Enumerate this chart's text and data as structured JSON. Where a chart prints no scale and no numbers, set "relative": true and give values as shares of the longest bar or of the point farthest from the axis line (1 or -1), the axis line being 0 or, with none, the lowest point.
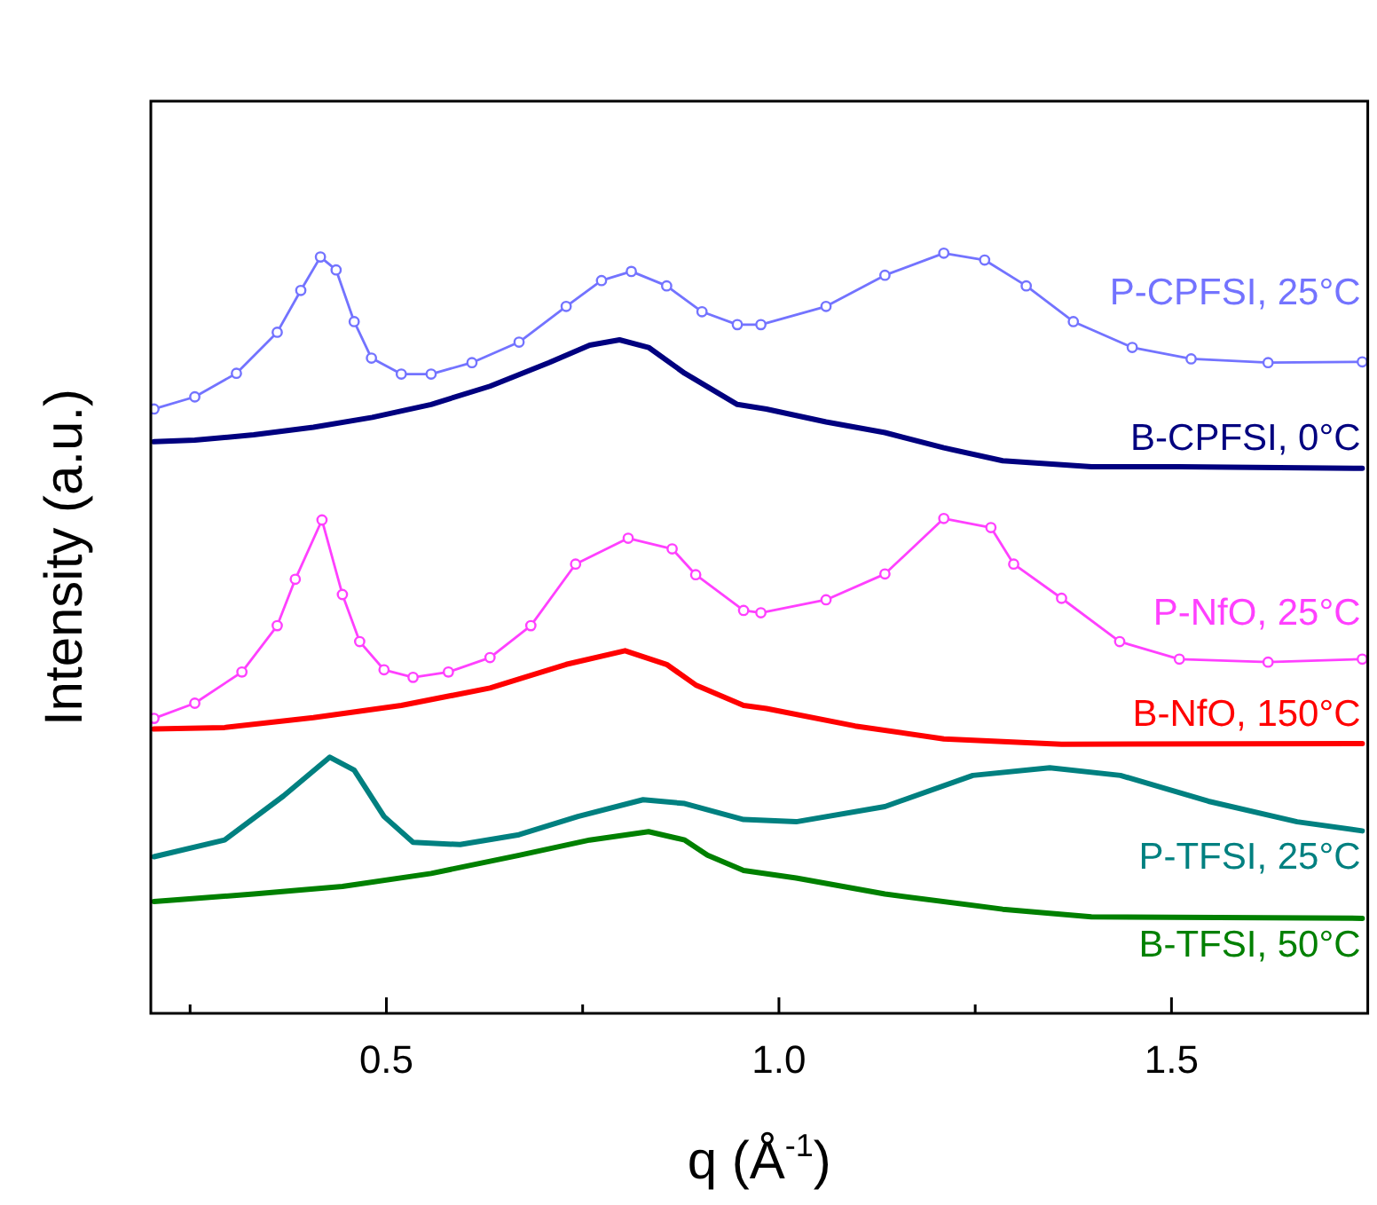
{
  "chart_data": {
    "type": "line",
    "xlabel": "q (Å$^{-1}$)",
    "ylabel": "Intensity (a.u.)",
    "relative": true,
    "tick_labels": "x",
    "xlim": [
      0.2,
      1.75
    ],
    "xticks": [
      {
        "value": 0.25,
        "label": null
      },
      0.5,
      {
        "value": 0.75,
        "label": null
      },
      {
        "value": 1,
        "label": "1.0"
      },
      {
        "value": 1.25,
        "label": null
      },
      1.5
    ],
    "series": [
      {
        "name": "P-CPFSI, 25°C",
        "color": "#7373ff",
        "marker": "circle",
        "x": [
          0.204,
          0.256,
          0.309,
          0.361,
          0.391,
          0.416,
          0.436,
          0.459,
          0.481,
          0.519,
          0.557,
          0.609,
          0.669,
          0.729,
          0.774,
          0.812,
          0.857,
          0.902,
          0.947,
          0.977,
          1.06,
          1.135,
          1.21,
          1.262,
          1.315,
          1.375,
          1.45,
          1.525,
          1.623,
          1.743
        ],
        "values": [
          0.795,
          0.811,
          0.842,
          0.896,
          0.951,
          0.995,
          0.978,
          0.91,
          0.862,
          0.841,
          0.841,
          0.856,
          0.883,
          0.93,
          0.964,
          0.976,
          0.957,
          0.923,
          0.906,
          0.906,
          0.93,
          0.971,
          1.0,
          0.991,
          0.957,
          0.91,
          0.876,
          0.861,
          0.856,
          0.857
        ]
      },
      {
        "name": "B-CPFSI, 0°C",
        "color": "#00007f",
        "marker": "none",
        "x": [
          0.204,
          0.256,
          0.331,
          0.407,
          0.482,
          0.557,
          0.632,
          0.707,
          0.759,
          0.797,
          0.834,
          0.88,
          0.947,
          0.984,
          1.06,
          1.135,
          1.21,
          1.285,
          1.398,
          1.51,
          1.743
        ],
        "values": [
          0.752,
          0.754,
          0.761,
          0.771,
          0.784,
          0.801,
          0.825,
          0.856,
          0.879,
          0.886,
          0.876,
          0.842,
          0.801,
          0.795,
          0.778,
          0.764,
          0.744,
          0.727,
          0.719,
          0.719,
          0.717
        ]
      },
      {
        "name": "P-NfO, 25°C",
        "color": "#ff40ff",
        "marker": "circle",
        "x": [
          0.204,
          0.256,
          0.316,
          0.361,
          0.384,
          0.418,
          0.444,
          0.466,
          0.497,
          0.534,
          0.579,
          0.632,
          0.684,
          0.741,
          0.808,
          0.864,
          0.894,
          0.955,
          0.977,
          1.06,
          1.135,
          1.21,
          1.27,
          1.299,
          1.36,
          1.434,
          1.51,
          1.623,
          1.743
        ],
        "values": [
          0.388,
          0.408,
          0.449,
          0.51,
          0.571,
          0.649,
          0.551,
          0.489,
          0.452,
          0.442,
          0.449,
          0.468,
          0.51,
          0.591,
          0.625,
          0.611,
          0.577,
          0.53,
          0.527,
          0.544,
          0.578,
          0.651,
          0.639,
          0.591,
          0.546,
          0.489,
          0.466,
          0.462,
          0.466
        ]
      },
      {
        "name": "B-NfO, 150°C",
        "color": "#ff0000",
        "marker": "none",
        "x": [
          0.204,
          0.294,
          0.407,
          0.519,
          0.632,
          0.729,
          0.804,
          0.857,
          0.894,
          0.955,
          0.984,
          1.097,
          1.21,
          1.36,
          1.743
        ],
        "values": [
          0.374,
          0.376,
          0.389,
          0.405,
          0.428,
          0.459,
          0.477,
          0.459,
          0.432,
          0.405,
          0.401,
          0.378,
          0.361,
          0.354,
          0.355
        ]
      },
      {
        "name": "P-TFSI, 25°C",
        "color": "#008080",
        "marker": "none",
        "x": [
          0.204,
          0.294,
          0.369,
          0.428,
          0.459,
          0.497,
          0.534,
          0.594,
          0.669,
          0.744,
          0.827,
          0.88,
          0.955,
          1.022,
          1.135,
          1.247,
          1.345,
          1.435,
          1.547,
          1.66,
          1.743
        ],
        "values": [
          0.206,
          0.228,
          0.286,
          0.337,
          0.32,
          0.259,
          0.225,
          0.222,
          0.235,
          0.259,
          0.281,
          0.276,
          0.255,
          0.252,
          0.272,
          0.313,
          0.323,
          0.313,
          0.279,
          0.252,
          0.24
        ]
      },
      {
        "name": "B-TFSI, 50°C",
        "color": "#008000",
        "marker": "none",
        "x": [
          0.204,
          0.331,
          0.444,
          0.557,
          0.669,
          0.759,
          0.834,
          0.88,
          0.909,
          0.955,
          1.022,
          1.135,
          1.285,
          1.398,
          1.743
        ],
        "values": [
          0.147,
          0.157,
          0.167,
          0.184,
          0.208,
          0.228,
          0.239,
          0.228,
          0.208,
          0.188,
          0.178,
          0.157,
          0.137,
          0.127,
          0.125
        ]
      }
    ]
  }
}
